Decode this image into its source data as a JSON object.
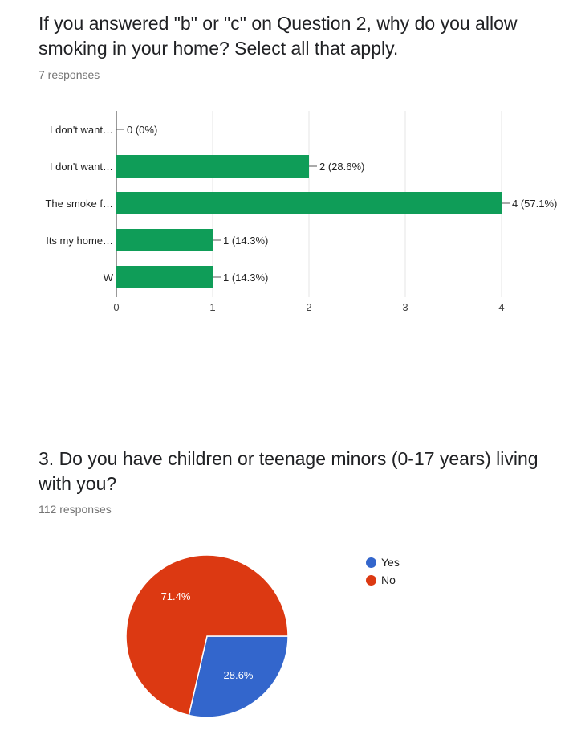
{
  "question1": {
    "title": "If you answered \"b\" or \"c\" on Question 2, why do you allow smoking in your home? Select all that apply.",
    "responses": "7 responses"
  },
  "question2": {
    "title": "3. Do you have children or teenage minors (0-17 years) living with you?",
    "responses": "112 responses"
  },
  "colors": {
    "bar": "#0f9d58",
    "yes": "#3366cc",
    "no": "#dc3912"
  },
  "chart_data": [
    {
      "type": "bar",
      "orientation": "horizontal",
      "categories": [
        "I don't want…",
        "I don't want…",
        "The smoke f…",
        "Its my home…",
        "W"
      ],
      "values": [
        0,
        2,
        4,
        1,
        1
      ],
      "data_labels": [
        "0 (0%)",
        "2 (28.6%)",
        "4 (57.1%)",
        "1 (14.3%)",
        "1 (14.3%)"
      ],
      "xlim": [
        0,
        4
      ],
      "x_ticks": [
        "0",
        "1",
        "2",
        "3",
        "4"
      ],
      "grid": true
    },
    {
      "type": "pie",
      "labels": [
        "Yes",
        "No"
      ],
      "values": [
        28.6,
        71.4
      ],
      "slice_labels": [
        "28.6%",
        "71.4%"
      ],
      "colors": [
        "#3366cc",
        "#dc3912"
      ],
      "legend": "right"
    }
  ]
}
